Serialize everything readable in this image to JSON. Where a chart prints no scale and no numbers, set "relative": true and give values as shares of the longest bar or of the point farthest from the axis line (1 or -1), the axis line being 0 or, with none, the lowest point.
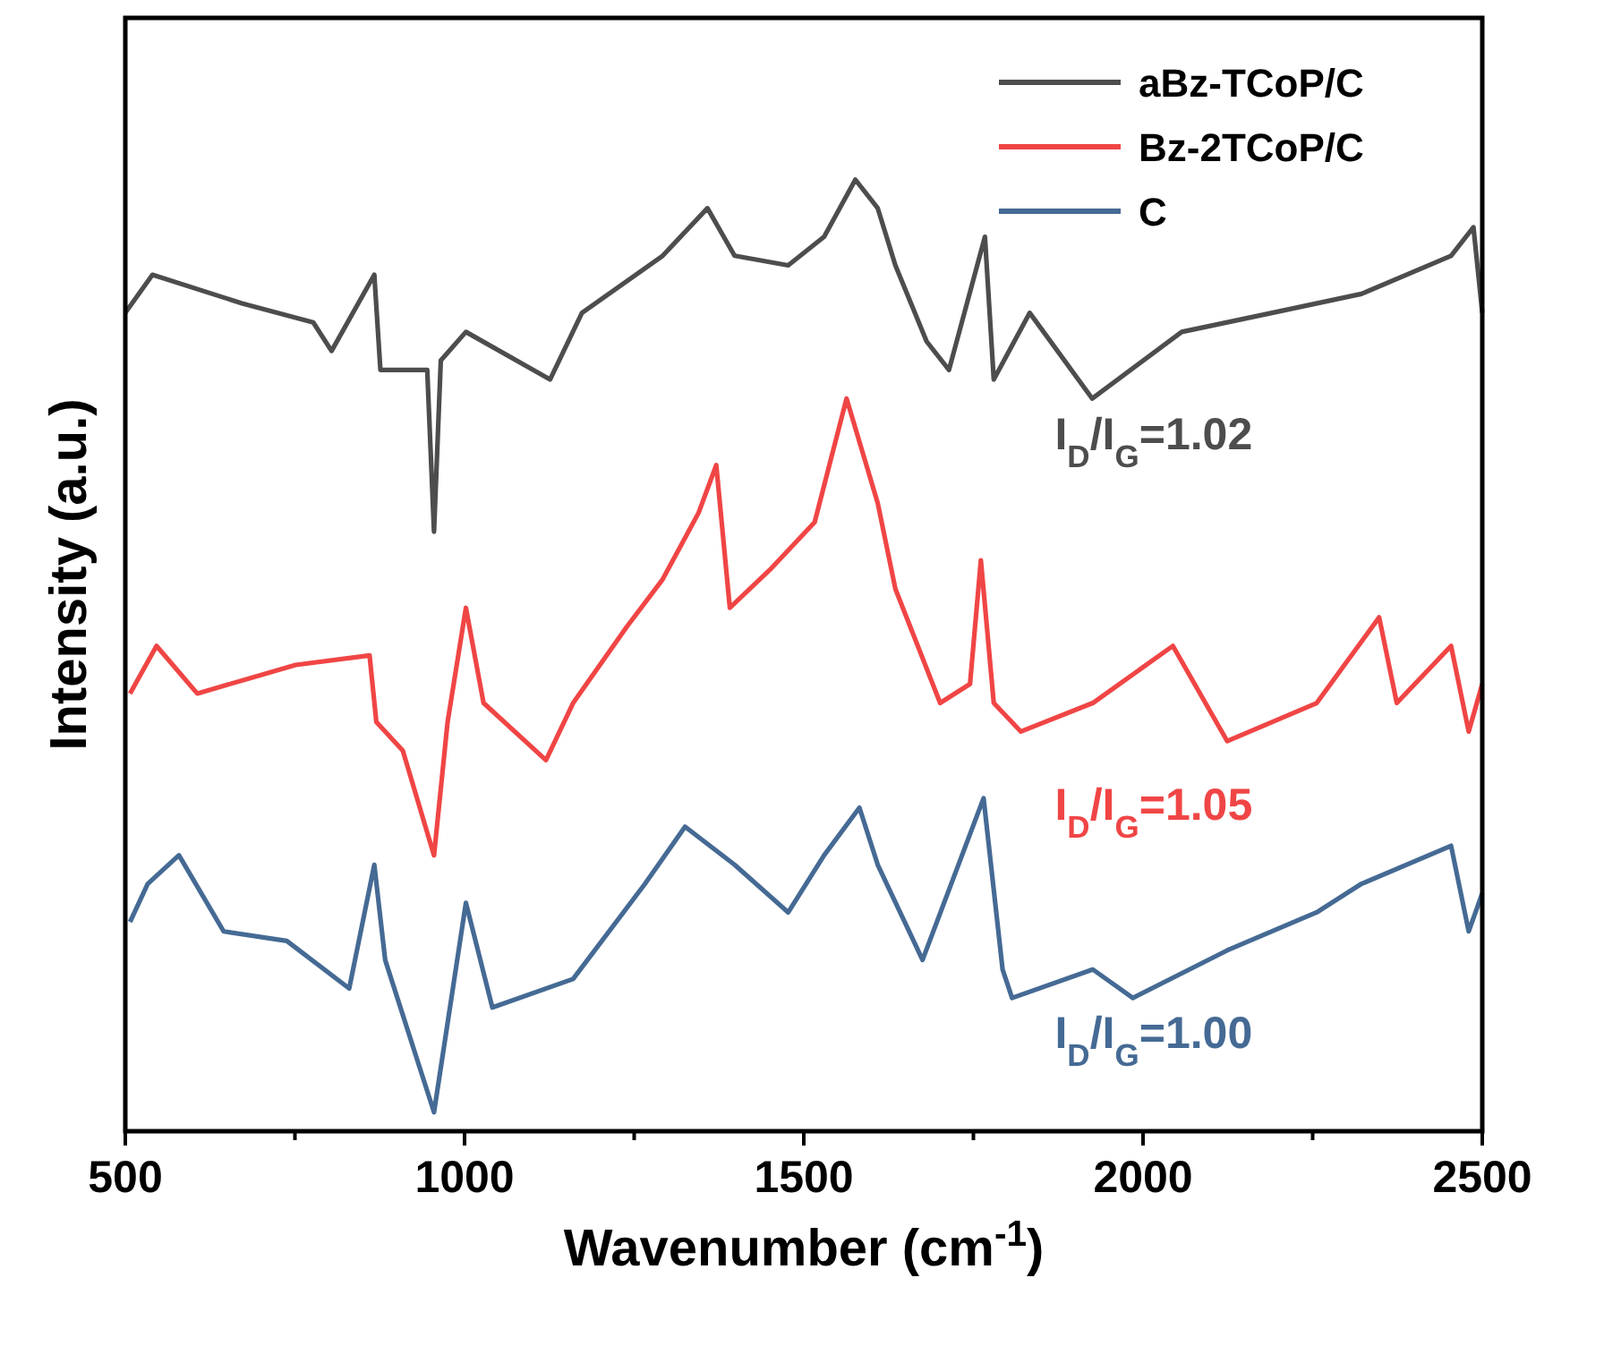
{
  "chart_data": {
    "type": "line",
    "relative": true,
    "xlabel": "Wavenumber (cm$^{-1}$)",
    "ylabel": "Intensity (a.u.)",
    "xlim": [
      500,
      2500
    ],
    "xticks": [
      500,
      {
        "value": 750,
        "label": null
      },
      1000,
      {
        "value": 1250,
        "label": null
      },
      1500,
      {
        "value": 1750,
        "label": null
      },
      2000,
      {
        "value": 2250,
        "label": null
      },
      2500
    ],
    "legend": "top right",
    "line_style": "solid",
    "marker": "none",
    "grid": false,
    "tick_labels": "x",
    "annotations": [
      "I$_{D}$/I$_{G}$=1.02",
      "I$_{D}$/I$_{G}$=1.05",
      "I$_{D}$/I$_{G}$=1.00"
    ],
    "series": [
      {
        "name": "aBz-TCoP/C",
        "color": "#4d4d4d",
        "x": [
          500,
          540,
          672,
          777,
          804,
          867,
          876,
          945,
          955,
          965,
          1002,
          1126,
          1173,
          1292,
          1358,
          1398,
          1477,
          1530,
          1576,
          1609,
          1635,
          1681,
          1714,
          1767,
          1780,
          1833,
          1925,
          2057,
          2190,
          2322,
          2454,
          2487,
          2500
        ],
        "values": [
          0.86,
          0.9,
          0.87,
          0.85,
          0.82,
          0.9,
          0.8,
          0.8,
          0.63,
          0.81,
          0.84,
          0.79,
          0.86,
          0.92,
          0.97,
          0.92,
          0.91,
          0.94,
          1.0,
          0.97,
          0.91,
          0.83,
          0.8,
          0.94,
          0.79,
          0.86,
          0.77,
          0.84,
          0.86,
          0.88,
          0.92,
          0.95,
          0.86
        ]
      },
      {
        "name": "Bz-2TCoP/C",
        "color": "#f04545",
        "x": [
          507,
          546,
          606,
          751,
          860,
          870,
          909,
          955,
          975,
          1002,
          1028,
          1120,
          1160,
          1239,
          1292,
          1345,
          1371,
          1391,
          1450,
          1516,
          1563,
          1609,
          1635,
          1701,
          1745,
          1761,
          1780,
          1820,
          1926,
          2044,
          2124,
          2256,
          2348,
          2374,
          2454,
          2480,
          2500
        ],
        "values": [
          0.46,
          0.51,
          0.46,
          0.49,
          0.5,
          0.43,
          0.4,
          0.29,
          0.43,
          0.55,
          0.45,
          0.39,
          0.45,
          0.53,
          0.58,
          0.65,
          0.7,
          0.55,
          0.59,
          0.64,
          0.77,
          0.66,
          0.57,
          0.45,
          0.47,
          0.6,
          0.45,
          0.42,
          0.45,
          0.51,
          0.41,
          0.45,
          0.54,
          0.45,
          0.51,
          0.42,
          0.47
        ]
      },
      {
        "name": "C",
        "color": "#456a94",
        "x": [
          507,
          533,
          579,
          645,
          738,
          830,
          867,
          883,
          955,
          1002,
          1041,
          1160,
          1266,
          1325,
          1398,
          1477,
          1530,
          1582,
          1609,
          1675,
          1765,
          1793,
          1807,
          1926,
          1985,
          2124,
          2256,
          2322,
          2454,
          2480,
          2500
        ],
        "values": [
          0.22,
          0.26,
          0.29,
          0.21,
          0.2,
          0.15,
          0.28,
          0.18,
          0.02,
          0.24,
          0.13,
          0.16,
          0.26,
          0.32,
          0.28,
          0.23,
          0.29,
          0.34,
          0.28,
          0.18,
          0.35,
          0.17,
          0.14,
          0.17,
          0.14,
          0.19,
          0.23,
          0.26,
          0.3,
          0.21,
          0.25
        ]
      }
    ]
  }
}
